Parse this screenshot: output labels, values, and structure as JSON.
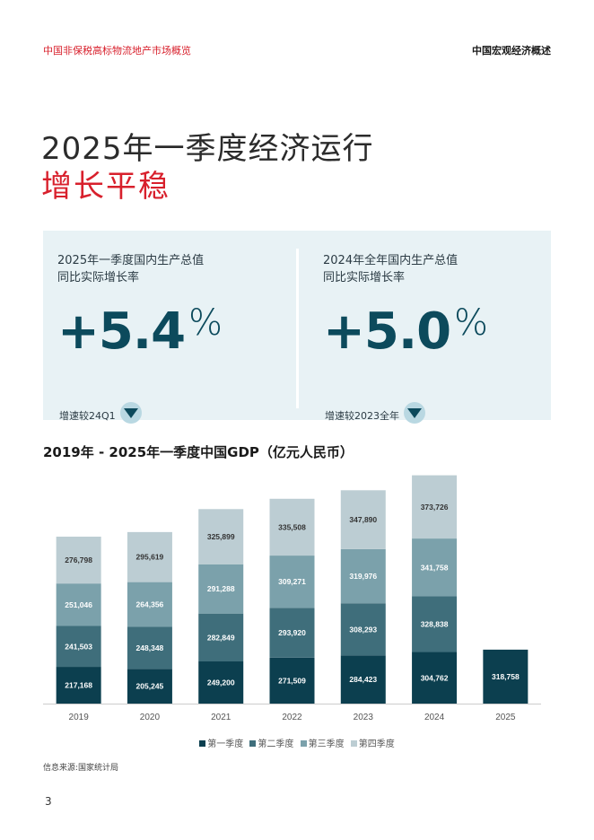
{
  "header": {
    "left": "中国非保税高标物流地产市场概览",
    "right": "中国宏观经济概述"
  },
  "title": {
    "line1": "2025年一季度经济运行",
    "line2": "增长平稳"
  },
  "stats": [
    {
      "label_line1": "2025年一季度国内生产总值",
      "label_line2": "同比实际增长率",
      "value": "+5.4",
      "unit": "%",
      "note": "增速较24Q1",
      "trend_icon": "triangle-down-icon"
    },
    {
      "label_line1": "2024年全年国内生产总值",
      "label_line2": "同比实际增长率",
      "value": "+5.0",
      "unit": "%",
      "note": "增速较2023全年",
      "trend_icon": "triangle-down-icon"
    }
  ],
  "chart_title": "2019年 - 2025年一季度中国GDP（亿元人民币）",
  "chart_data": {
    "type": "bar",
    "stacked": true,
    "categories": [
      "2019",
      "2020",
      "2021",
      "2022",
      "2023",
      "2024",
      "2025"
    ],
    "series": [
      {
        "name": "第一季度",
        "color": "#0c3f4f",
        "values": [
          217168,
          205245,
          249200,
          271509,
          284423,
          304762,
          318758
        ]
      },
      {
        "name": "第二季度",
        "color": "#3f6e7b",
        "values": [
          241503,
          248348,
          282849,
          293920,
          308293,
          328838,
          null
        ]
      },
      {
        "name": "第三季度",
        "color": "#7ba1ab",
        "values": [
          251046,
          264356,
          291288,
          309271,
          319976,
          341758,
          null
        ]
      },
      {
        "name": "第四季度",
        "color": "#bccdd3",
        "values": [
          276798,
          295619,
          325899,
          335508,
          347890,
          373726,
          null
        ]
      }
    ],
    "data_labels": [
      [
        "217,168",
        "205,245",
        "249,200",
        "271,509",
        "284,423",
        "304,762",
        "318,758"
      ],
      [
        "241,503",
        "248,348",
        "282,849",
        "293,920",
        "308,293",
        "328,838",
        ""
      ],
      [
        "251,046",
        "264,356",
        "291,288",
        "309,271",
        "319,976",
        "341,758",
        ""
      ],
      [
        "276,798",
        "295,619",
        "325,899",
        "335,508",
        "347,890",
        "373,726",
        ""
      ]
    ],
    "ylim": [
      0,
      1400000
    ],
    "legend_position": "bottom",
    "grid": false
  },
  "legend": [
    "第一季度",
    "第二季度",
    "第三季度",
    "第四季度"
  ],
  "source": "信息来源:国家统计局",
  "page_number": "3"
}
